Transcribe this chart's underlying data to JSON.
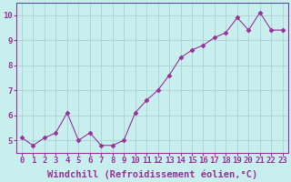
{
  "x": [
    0,
    1,
    2,
    3,
    4,
    5,
    6,
    7,
    8,
    9,
    10,
    11,
    12,
    13,
    14,
    15,
    16,
    17,
    18,
    19,
    20,
    21,
    22,
    23
  ],
  "y": [
    5.1,
    4.8,
    5.1,
    5.3,
    6.1,
    5.0,
    5.3,
    4.8,
    4.8,
    5.0,
    6.1,
    6.6,
    7.0,
    7.6,
    8.3,
    8.6,
    8.8,
    9.1,
    9.3,
    9.9,
    9.4,
    10.1,
    9.4,
    9.4
  ],
  "line_color": "#993399",
  "marker": "D",
  "marker_size": 2.5,
  "background_color": "#c8eeee",
  "grid_color": "#aad4d4",
  "xlabel": "Windchill (Refroidissement éolien,°C)",
  "tick_color": "#993399",
  "label_color": "#993399",
  "tick_fontsize": 6.5,
  "xlabel_fontsize": 7.5,
  "ylim": [
    4.5,
    10.5
  ],
  "xlim": [
    -0.5,
    23.5
  ],
  "yticks": [
    5,
    6,
    7,
    8,
    9,
    10
  ],
  "xticks": [
    0,
    1,
    2,
    3,
    4,
    5,
    6,
    7,
    8,
    9,
    10,
    11,
    12,
    13,
    14,
    15,
    16,
    17,
    18,
    19,
    20,
    21,
    22,
    23
  ],
  "spine_color": "#993399",
  "figsize": [
    3.2,
    2.0
  ],
  "dpi": 100
}
